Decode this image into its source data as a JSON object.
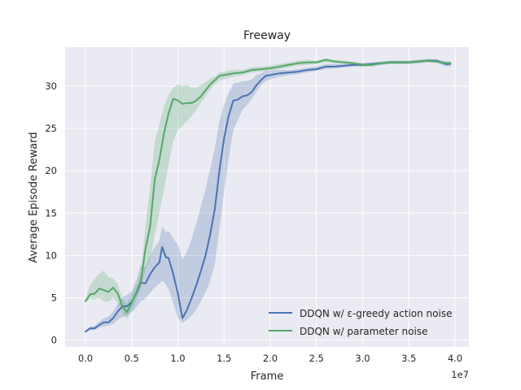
{
  "chart_data": {
    "type": "line",
    "title": "Freeway",
    "xlabel": "Frame",
    "ylabel": "Average Episode Reward",
    "x_offset_label": "1e7",
    "xlim": [
      -0.22,
      4.15
    ],
    "ylim": [
      -0.8,
      34.6
    ],
    "xticks": [
      0.0,
      0.5,
      1.0,
      1.5,
      2.0,
      2.5,
      3.0,
      3.5,
      4.0
    ],
    "xtick_labels": [
      "0.0",
      "0.5",
      "1.0",
      "1.5",
      "2.0",
      "2.5",
      "3.0",
      "3.5",
      "4.0"
    ],
    "yticks": [
      0,
      5,
      10,
      15,
      20,
      25,
      30
    ],
    "ytick_labels": [
      "0",
      "5",
      "10",
      "15",
      "20",
      "25",
      "30"
    ],
    "grid": true,
    "legend_position": "lower-right",
    "series": [
      {
        "name": "DDQN w/ ε-greedy action noise",
        "color": "#4c72b0",
        "x": [
          0.0,
          0.05,
          0.1,
          0.15,
          0.2,
          0.25,
          0.3,
          0.35,
          0.4,
          0.45,
          0.5,
          0.55,
          0.6,
          0.65,
          0.7,
          0.75,
          0.8,
          0.83,
          0.87,
          0.9,
          0.95,
          1.0,
          1.05,
          1.1,
          1.15,
          1.2,
          1.25,
          1.3,
          1.35,
          1.4,
          1.45,
          1.5,
          1.55,
          1.6,
          1.65,
          1.7,
          1.75,
          1.8,
          1.85,
          1.9,
          1.95,
          2.0,
          2.1,
          2.2,
          2.3,
          2.4,
          2.5,
          2.6,
          2.7,
          2.8,
          2.9,
          3.0,
          3.1,
          3.2,
          3.3,
          3.4,
          3.5,
          3.6,
          3.7,
          3.8,
          3.9,
          3.95
        ],
        "y": [
          1.0,
          1.4,
          1.4,
          1.8,
          2.1,
          2.1,
          2.6,
          3.4,
          4.0,
          4.0,
          4.5,
          5.5,
          6.8,
          6.7,
          7.8,
          8.6,
          9.2,
          11.0,
          9.8,
          9.7,
          7.8,
          5.5,
          2.6,
          3.6,
          5.0,
          6.5,
          8.2,
          10.0,
          12.5,
          15.5,
          20.0,
          23.8,
          26.5,
          28.3,
          28.4,
          28.8,
          28.9,
          29.3,
          30.1,
          30.7,
          31.2,
          31.3,
          31.5,
          31.6,
          31.7,
          31.9,
          32.0,
          32.3,
          32.3,
          32.4,
          32.5,
          32.5,
          32.6,
          32.7,
          32.8,
          32.8,
          32.8,
          32.9,
          33.0,
          33.0,
          32.6,
          32.6
        ],
        "band_low": [
          0.9,
          1.2,
          1.2,
          1.5,
          1.6,
          1.7,
          1.9,
          2.4,
          2.7,
          2.9,
          3.3,
          3.9,
          4.6,
          4.9,
          5.6,
          6.2,
          6.7,
          7.0,
          6.6,
          6.0,
          4.4,
          2.6,
          2.0,
          2.4,
          2.9,
          3.6,
          4.6,
          5.6,
          7.0,
          9.0,
          13.0,
          17.5,
          21.5,
          24.8,
          26.0,
          27.2,
          27.8,
          28.5,
          29.3,
          30.1,
          30.6,
          30.8,
          31.1,
          31.3,
          31.4,
          31.6,
          31.8,
          32.0,
          32.1,
          32.2,
          32.3,
          32.3,
          32.4,
          32.5,
          32.6,
          32.6,
          32.6,
          32.7,
          32.8,
          32.8,
          32.3,
          32.3
        ],
        "band_high": [
          1.1,
          1.6,
          1.7,
          2.2,
          2.6,
          2.8,
          3.4,
          4.3,
          5.1,
          5.3,
          5.8,
          7.1,
          8.9,
          8.6,
          10.0,
          11.0,
          11.7,
          13.5,
          12.7,
          12.9,
          12.0,
          11.3,
          9.5,
          10.5,
          12.0,
          13.8,
          15.8,
          17.9,
          20.2,
          22.7,
          25.8,
          27.8,
          29.2,
          30.3,
          30.4,
          30.6,
          30.6,
          30.8,
          31.3,
          31.5,
          31.8,
          31.8,
          31.9,
          31.9,
          32.0,
          32.2,
          32.3,
          32.6,
          32.6,
          32.6,
          32.7,
          32.7,
          32.8,
          32.9,
          33.0,
          33.0,
          33.0,
          33.1,
          33.2,
          33.2,
          32.9,
          32.9
        ]
      },
      {
        "name": "DDQN w/ parameter noise",
        "color": "#55a868",
        "x": [
          0.0,
          0.05,
          0.1,
          0.15,
          0.2,
          0.25,
          0.3,
          0.35,
          0.4,
          0.45,
          0.5,
          0.55,
          0.6,
          0.65,
          0.7,
          0.75,
          0.8,
          0.85,
          0.9,
          0.95,
          1.0,
          1.05,
          1.1,
          1.15,
          1.2,
          1.25,
          1.3,
          1.35,
          1.4,
          1.45,
          1.5,
          1.55,
          1.6,
          1.7,
          1.8,
          1.9,
          2.0,
          2.1,
          2.2,
          2.3,
          2.4,
          2.5,
          2.6,
          2.7,
          2.8,
          2.9,
          3.0,
          3.1,
          3.2,
          3.3,
          3.4,
          3.5,
          3.6,
          3.7,
          3.8,
          3.9,
          3.95
        ],
        "y": [
          4.6,
          5.4,
          5.5,
          6.1,
          5.9,
          5.7,
          6.2,
          5.5,
          4.0,
          3.3,
          4.4,
          5.6,
          7.0,
          10.8,
          13.4,
          19.0,
          21.3,
          24.4,
          26.8,
          28.5,
          28.3,
          27.9,
          28.0,
          28.0,
          28.3,
          28.8,
          29.5,
          30.2,
          30.7,
          31.2,
          31.3,
          31.4,
          31.5,
          31.6,
          31.9,
          32.0,
          32.1,
          32.3,
          32.5,
          32.7,
          32.8,
          32.8,
          33.1,
          32.9,
          32.8,
          32.7,
          32.5,
          32.5,
          32.7,
          32.8,
          32.8,
          32.8,
          32.9,
          33.0,
          32.9,
          32.7,
          32.7
        ],
        "band_low": [
          4.4,
          4.9,
          4.8,
          5.0,
          4.6,
          4.5,
          5.0,
          4.4,
          3.2,
          2.5,
          3.5,
          4.7,
          6.2,
          8.2,
          9.5,
          12.5,
          15.0,
          17.8,
          20.8,
          23.5,
          24.8,
          25.3,
          25.9,
          26.5,
          27.2,
          28.0,
          28.8,
          29.6,
          30.2,
          30.7,
          30.8,
          31.0,
          31.1,
          31.3,
          31.6,
          31.7,
          31.8,
          32.0,
          32.2,
          32.4,
          32.5,
          32.6,
          32.8,
          32.7,
          32.6,
          32.5,
          32.3,
          32.3,
          32.5,
          32.6,
          32.6,
          32.6,
          32.7,
          32.8,
          32.7,
          32.5,
          32.5
        ],
        "band_high": [
          4.8,
          6.5,
          7.2,
          7.9,
          8.2,
          7.4,
          7.3,
          6.6,
          4.9,
          4.3,
          5.4,
          6.5,
          7.9,
          13.5,
          18.0,
          23.5,
          25.5,
          27.6,
          28.9,
          29.8,
          30.2,
          30.0,
          30.1,
          29.8,
          29.8,
          30.1,
          30.5,
          30.9,
          31.1,
          31.6,
          31.7,
          31.8,
          31.9,
          31.9,
          32.2,
          32.3,
          32.4,
          32.6,
          32.8,
          33.0,
          33.1,
          33.0,
          33.3,
          33.1,
          33.0,
          32.9,
          32.7,
          32.7,
          32.9,
          33.0,
          33.0,
          33.0,
          33.1,
          33.2,
          33.1,
          32.9,
          32.9
        ]
      }
    ]
  }
}
